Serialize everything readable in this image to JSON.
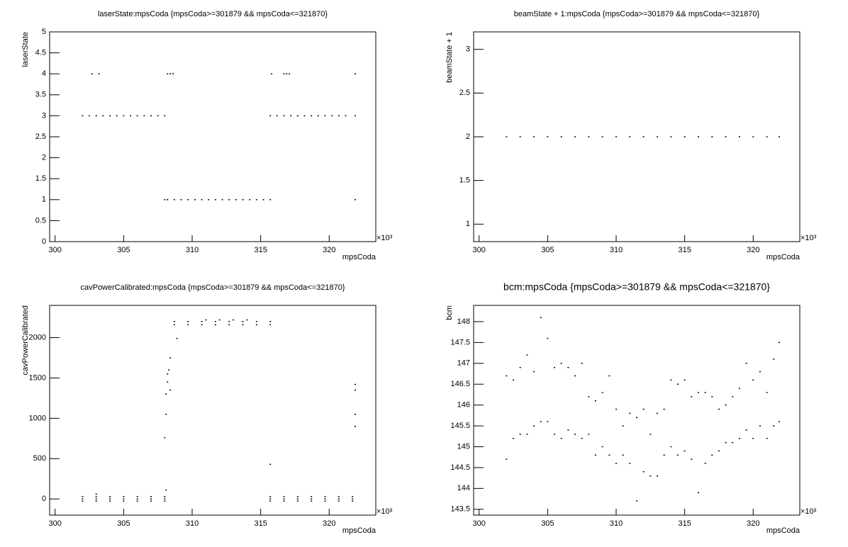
{
  "chart_data": [
    {
      "type": "scatter",
      "title": "laserState:mpsCoda {mpsCoda>=301879 && mpsCoda<=321870}",
      "x_label": "mpsCoda",
      "y_label": "laserState",
      "x_exponent": "×10³",
      "xlim": [
        299.6,
        323.4
      ],
      "xticks": [
        300,
        305,
        310,
        315,
        320
      ],
      "ylim": [
        0,
        5
      ],
      "yticks": [
        0,
        0.5,
        1,
        1.5,
        2,
        2.5,
        3,
        3.5,
        4,
        4.5,
        5
      ],
      "series": [
        {
          "color": "#000000",
          "x": [
            302,
            302.5,
            303,
            303.5,
            304,
            304.5,
            305,
            305.5,
            306,
            306.5,
            307,
            307.5,
            308,
            315.7,
            316.2,
            316.7,
            317.2,
            317.7,
            318.2,
            318.7,
            319.2,
            319.7,
            320.2,
            320.7,
            321.2,
            321.9,
            308,
            308.2,
            308.7,
            309.2,
            309.7,
            310.2,
            310.7,
            311.2,
            311.7,
            312.2,
            312.7,
            313.2,
            313.7,
            314.2,
            314.7,
            315.2,
            315.7,
            321.9,
            302.7,
            303.2,
            308.2,
            308.4,
            308.6,
            315.8,
            316.7,
            316.9,
            317.1,
            321.9
          ],
          "values": [
            3,
            3,
            3,
            3,
            3,
            3,
            3,
            3,
            3,
            3,
            3,
            3,
            3,
            3,
            3,
            3,
            3,
            3,
            3,
            3,
            3,
            3,
            3,
            3,
            3,
            3,
            1,
            1,
            1,
            1,
            1,
            1,
            1,
            1,
            1,
            1,
            1,
            1,
            1,
            1,
            1,
            1,
            1,
            1,
            4,
            4,
            4,
            4,
            4,
            4,
            4,
            4,
            4,
            4
          ]
        }
      ]
    },
    {
      "type": "scatter",
      "title": "beamState + 1:mpsCoda {mpsCoda>=301879 && mpsCoda<=321870}",
      "x_label": "mpsCoda",
      "y_label": "beamState + 1",
      "x_exponent": "×10³",
      "xlim": [
        299.6,
        323.4
      ],
      "xticks": [
        300,
        305,
        310,
        315,
        320
      ],
      "ylim": [
        0.8,
        3.2
      ],
      "yticks": [
        1,
        1.5,
        2,
        2.5,
        3
      ],
      "series": [
        {
          "color": "#000000",
          "x": [
            302,
            303,
            304,
            305,
            306,
            307,
            308,
            309,
            310,
            311,
            312,
            313,
            314,
            315,
            316,
            317,
            318,
            319,
            320,
            321,
            321.9
          ],
          "values": [
            2,
            2,
            2,
            2,
            2,
            2,
            2,
            2,
            2,
            2,
            2,
            2,
            2,
            2,
            2,
            2,
            2,
            2,
            2,
            2,
            2
          ]
        }
      ]
    },
    {
      "type": "scatter",
      "title": "cavPowerCalibrated:mpsCoda {mpsCoda>=301879 && mpsCoda<=321870}",
      "x_label": "mpsCoda",
      "y_label": "cavPowerCalibrated",
      "x_exponent": "×10³",
      "xlim": [
        299.6,
        323.4
      ],
      "xticks": [
        300,
        305,
        310,
        315,
        320
      ],
      "ylim": [
        -200,
        2400
      ],
      "yticks": [
        0,
        500,
        1000,
        1500,
        2000
      ],
      "series": [
        {
          "color": "#000000",
          "x": [
            302,
            303,
            304,
            305,
            306,
            307,
            308,
            302,
            303,
            304,
            305,
            306,
            307,
            308,
            302,
            303,
            304,
            305,
            306,
            307,
            308,
            315.7,
            316.7,
            317.7,
            318.7,
            319.7,
            320.7,
            321.7,
            315.7,
            316.7,
            317.7,
            318.7,
            319.7,
            320.7,
            321.7,
            315.7,
            316.7,
            317.7,
            318.7,
            319.7,
            320.7,
            321.7,
            308.1,
            308.2,
            308.3,
            308.4,
            308.2,
            308.4,
            308.7,
            309.7,
            310.7,
            311.7,
            312.7,
            313.7,
            314.7,
            315.7,
            308.7,
            309.7,
            310.7,
            311.7,
            312.7,
            313.7,
            314.7,
            315.7,
            311,
            312,
            313,
            314,
            308.1,
            308,
            308.1,
            308.9,
            315.7,
            321.9,
            321.9,
            321.9,
            321.9,
            303
          ],
          "values": [
            -25,
            -25,
            -25,
            -25,
            -25,
            -25,
            -25,
            0,
            0,
            0,
            0,
            0,
            0,
            0,
            30,
            30,
            30,
            30,
            30,
            30,
            30,
            -25,
            -25,
            -25,
            -25,
            -25,
            -25,
            -25,
            0,
            0,
            0,
            0,
            0,
            0,
            0,
            30,
            30,
            30,
            30,
            30,
            30,
            30,
            1300,
            1450,
            1600,
            1750,
            1550,
            1350,
            2160,
            2160,
            2160,
            2160,
            2160,
            2160,
            2160,
            2160,
            2200,
            2200,
            2200,
            2200,
            2200,
            2200,
            2200,
            2200,
            2220,
            2220,
            2220,
            2220,
            1050,
            760,
            110,
            1990,
            430,
            1420,
            1350,
            1050,
            900,
            60
          ]
        }
      ]
    },
    {
      "type": "scatter",
      "title": "bcm:mpsCoda {mpsCoda>=301879 && mpsCoda<=321870}",
      "x_label": "mpsCoda",
      "y_label": "bcm",
      "x_exponent": "×10³",
      "xlim": [
        299.6,
        323.4
      ],
      "xticks": [
        300,
        305,
        310,
        315,
        320
      ],
      "ylim": [
        143.36,
        148.39
      ],
      "yticks": [
        143.5,
        144,
        144.5,
        145,
        145.5,
        146,
        146.5,
        147,
        147.5,
        148
      ],
      "series": [
        {
          "color": "#000000",
          "x": [
            302,
            302,
            302.5,
            302.5,
            303,
            303,
            303.5,
            303.5,
            304,
            304,
            304.5,
            304.5,
            305,
            305,
            305.5,
            305.5,
            306,
            306,
            306.5,
            306.5,
            307,
            307,
            307.5,
            307.5,
            308,
            308,
            308.5,
            308.5,
            309,
            309,
            309.5,
            309.5,
            310,
            310,
            310.5,
            310.5,
            311,
            311,
            311.5,
            311.5,
            312,
            312,
            312.5,
            312.5,
            313,
            313,
            313.5,
            313.5,
            314,
            314,
            314.5,
            314.5,
            315,
            315,
            315.5,
            315.5,
            316,
            316,
            316.5,
            316.5,
            317,
            317,
            317.5,
            317.5,
            318,
            318,
            318.5,
            318.5,
            319,
            319,
            319.5,
            319.5,
            320,
            320,
            320.5,
            320.5,
            321,
            321,
            321.5,
            321.5,
            321.9,
            321.9
          ],
          "values": [
            144.7,
            146.7,
            145.2,
            146.6,
            145.3,
            146.9,
            145.3,
            147.2,
            145.5,
            146.8,
            145.6,
            148.1,
            145.6,
            147.6,
            145.3,
            146.9,
            145.2,
            147.0,
            145.4,
            146.9,
            145.3,
            146.7,
            145.2,
            147.0,
            145.3,
            146.2,
            144.8,
            146.1,
            145.0,
            146.3,
            144.8,
            146.7,
            144.6,
            145.9,
            144.8,
            145.5,
            144.6,
            145.8,
            143.7,
            145.7,
            144.4,
            145.9,
            144.3,
            145.3,
            144.3,
            145.8,
            144.8,
            145.9,
            145.0,
            146.6,
            144.8,
            146.5,
            144.9,
            146.6,
            144.7,
            146.2,
            143.9,
            146.3,
            144.6,
            146.3,
            144.8,
            146.2,
            144.9,
            145.9,
            145.1,
            146.0,
            145.1,
            146.2,
            145.2,
            146.4,
            145.4,
            147.0,
            145.2,
            146.6,
            145.5,
            146.8,
            145.2,
            146.3,
            145.5,
            147.1,
            145.6,
            147.5
          ]
        }
      ]
    }
  ]
}
